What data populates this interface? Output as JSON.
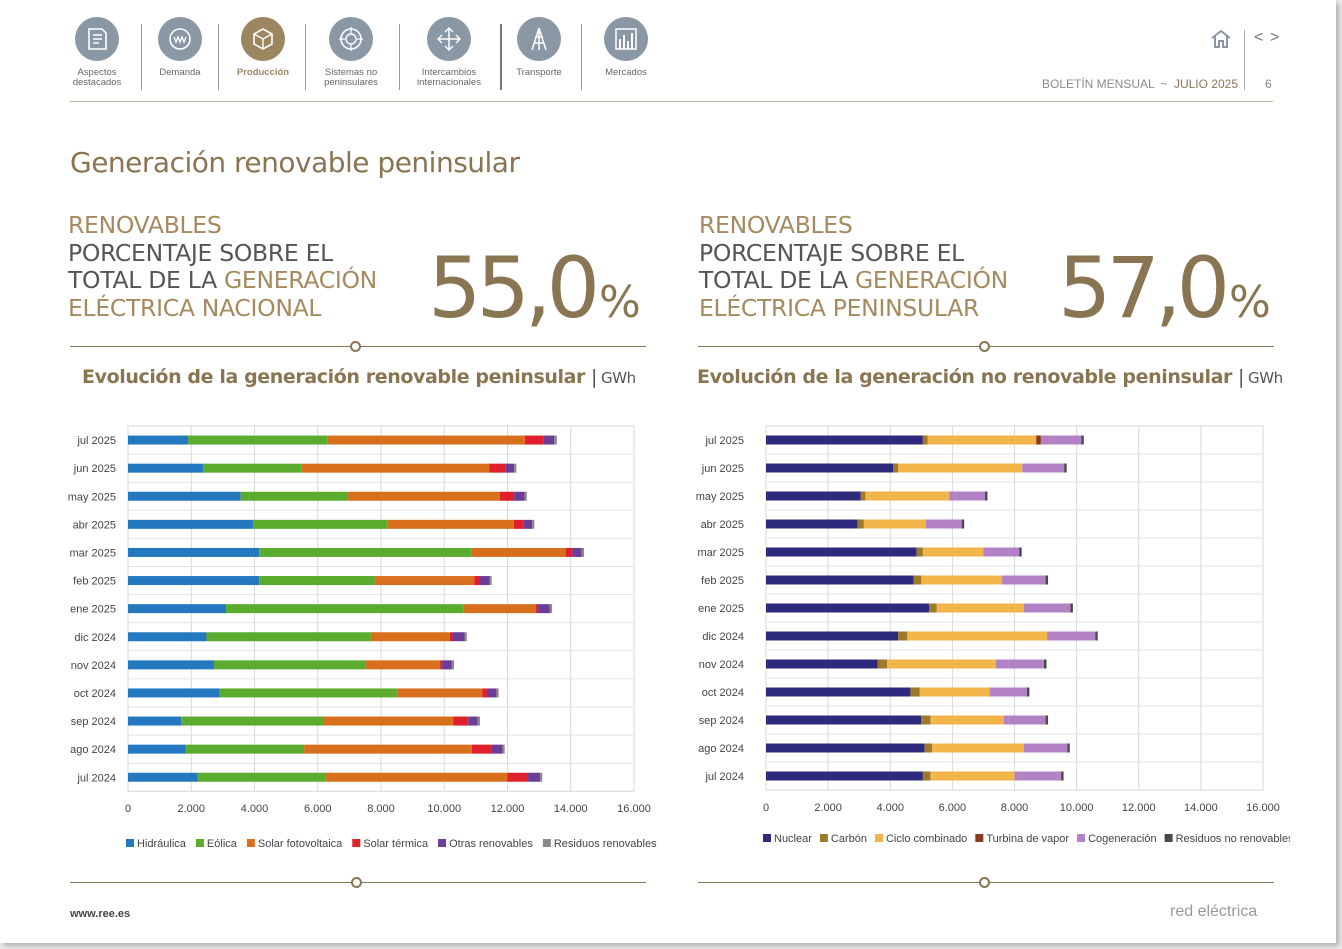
{
  "nav": {
    "items": [
      {
        "label_line1": "Aspectos",
        "label_line2": "destacados",
        "active": false
      },
      {
        "label_line1": "Demanda",
        "label_line2": "",
        "active": false
      },
      {
        "label_line1": "Producción",
        "label_line2": "",
        "active": true
      },
      {
        "label_line1": "Sistemas no",
        "label_line2": "peninsulares",
        "active": false
      },
      {
        "label_line1": "Intercambios",
        "label_line2": "internacionales",
        "active": false
      },
      {
        "label_line1": "Transporte",
        "label_line2": "",
        "active": false
      },
      {
        "label_line1": "Mercados",
        "label_line2": "",
        "active": false
      }
    ]
  },
  "header": {
    "bulletin": "BOLETÍN MENSUAL",
    "separator": "~",
    "month": "JULIO 2025",
    "page_number": "6",
    "prev": "<",
    "next": ">"
  },
  "page_title": "Generación renovable peninsular",
  "kpis": {
    "left": {
      "line1": "RENOVABLES",
      "line2": "PORCENTAJE SOBRE EL",
      "line3a": "TOTAL DE LA ",
      "line3b": "GENERACIÓN",
      "line4": "ELÉCTRICA NACIONAL",
      "value": "55,0",
      "unit": "%"
    },
    "right": {
      "line1": "RENOVABLES",
      "line2": "PORCENTAJE SOBRE EL",
      "line3a": "TOTAL DE LA ",
      "line3b": "GENERACIÓN",
      "line4": "ELÉCTRICA PENINSULAR",
      "value": "57,0",
      "unit": "%"
    }
  },
  "colors": {
    "accent": "#8a7552",
    "nav_icon": "#8a98a6",
    "nav_active": "#9c8660"
  },
  "chart_data": [
    {
      "type": "bar",
      "orientation": "horizontal",
      "stacked": true,
      "title": "Evolución de la generación renovable peninsular",
      "unit": "GWh",
      "xlim": [
        0,
        16000
      ],
      "ticks": [
        "0",
        "2.000",
        "4.000",
        "6.000",
        "8.000",
        "10.000",
        "12.000",
        "14.000",
        "16.000"
      ],
      "legend_position": "bottom",
      "categories": [
        "jul 2025",
        "jun 2025",
        "may 2025",
        "abr 2025",
        "mar 2025",
        "feb 2025",
        "ene 2025",
        "dic 2024",
        "nov 2024",
        "oct 2024",
        "sep 2024",
        "ago 2024",
        "jul 2024"
      ],
      "series": [
        {
          "name": "Hidráulica",
          "color": "#2478c0",
          "values": [
            1900,
            2380,
            3560,
            3950,
            4150,
            4150,
            3100,
            2480,
            2720,
            2900,
            1680,
            1820,
            2200
          ]
        },
        {
          "name": "Eólica",
          "color": "#5aab2e",
          "values": [
            4400,
            3100,
            3400,
            4250,
            6700,
            3650,
            7500,
            5200,
            4800,
            5600,
            4500,
            3750,
            4050
          ]
        },
        {
          "name": "Solar fotovoltaica",
          "color": "#d86f1c",
          "values": [
            6250,
            5950,
            4800,
            4000,
            3000,
            3150,
            2300,
            2500,
            2350,
            2700,
            4100,
            5300,
            5750
          ]
        },
        {
          "name": "Solar térmica",
          "color": "#e0202a",
          "values": [
            600,
            500,
            450,
            300,
            200,
            150,
            60,
            80,
            70,
            150,
            480,
            620,
            650
          ]
        },
        {
          "name": "Otras renovables",
          "color": "#6b3d96",
          "values": [
            330,
            280,
            330,
            280,
            300,
            330,
            380,
            380,
            300,
            300,
            300,
            350,
            380
          ]
        },
        {
          "name": "Residuos renovables",
          "color": "#8a8a8a",
          "values": [
            80,
            70,
            70,
            70,
            70,
            70,
            70,
            70,
            70,
            70,
            70,
            70,
            70
          ]
        }
      ]
    },
    {
      "type": "bar",
      "orientation": "horizontal",
      "stacked": true,
      "title": "Evolución de la generación no renovable peninsular",
      "unit": "GWh",
      "xlim": [
        0,
        16000
      ],
      "ticks": [
        "0",
        "2.000",
        "4.000",
        "6.000",
        "8.000",
        "10.000",
        "12.000",
        "14.000",
        "16.000"
      ],
      "legend_position": "bottom",
      "categories": [
        "jul 2025",
        "jun 2025",
        "may 2025",
        "abr 2025",
        "mar 2025",
        "feb 2025",
        "ene 2025",
        "dic 2024",
        "nov 2024",
        "oct 2024",
        "sep 2024",
        "ago 2024",
        "jul 2024"
      ],
      "series": [
        {
          "name": "Nuclear",
          "color": "#2f2a7e",
          "values": [
            5050,
            4100,
            3050,
            2950,
            4850,
            4750,
            5250,
            4250,
            3600,
            4650,
            5000,
            5100,
            5050
          ]
        },
        {
          "name": "Carbón",
          "color": "#9c7a2a",
          "values": [
            150,
            150,
            150,
            200,
            200,
            250,
            250,
            300,
            300,
            300,
            300,
            250,
            250
          ]
        },
        {
          "name": "Ciclo combinado",
          "color": "#f2b54a",
          "values": [
            3500,
            4000,
            2700,
            2000,
            1950,
            2600,
            2800,
            4500,
            3500,
            2250,
            2350,
            2950,
            2700
          ]
        },
        {
          "name": "Turbina de vapor",
          "color": "#8b3a1e",
          "values": [
            150,
            0,
            0,
            0,
            0,
            0,
            0,
            0,
            0,
            0,
            0,
            0,
            0
          ]
        },
        {
          "name": "Cogeneración",
          "color": "#b382c6",
          "values": [
            1300,
            1350,
            1150,
            1150,
            1150,
            1400,
            1500,
            1550,
            1550,
            1200,
            1350,
            1400,
            1500
          ]
        },
        {
          "name": "Residuos no renovables",
          "color": "#4a4a4a",
          "values": [
            80,
            80,
            80,
            80,
            80,
            80,
            80,
            80,
            80,
            80,
            80,
            80,
            80
          ]
        }
      ]
    }
  ],
  "footer": {
    "url": "www.ree.es",
    "brand": "red eléctrica"
  }
}
